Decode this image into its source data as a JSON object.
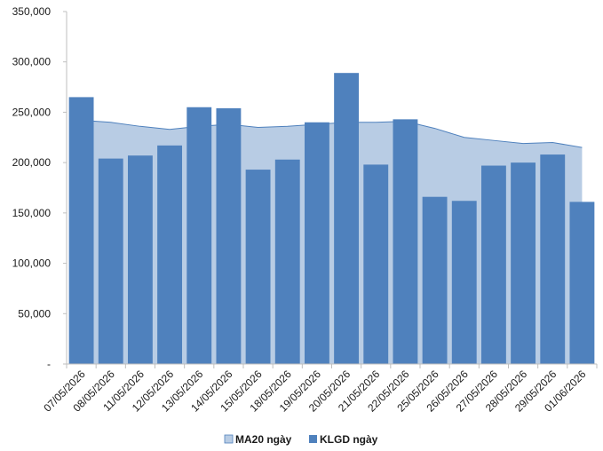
{
  "chart_data": {
    "type": "bar",
    "categories": [
      "07/05/2026",
      "08/05/2026",
      "11/05/2026",
      "12/05/2026",
      "13/05/2026",
      "14/05/2026",
      "15/05/2026",
      "18/05/2026",
      "19/05/2026",
      "20/05/2026",
      "21/05/2026",
      "22/05/2026",
      "25/05/2026",
      "26/05/2026",
      "27/05/2026",
      "28/05/2026",
      "29/05/2026",
      "01/06/2026"
    ],
    "series": [
      {
        "name": "MA20 ngày",
        "kind": "area",
        "color": "#b8cce4",
        "line_color": "#4f81bd",
        "values": [
          242000,
          240000,
          236000,
          233000,
          236000,
          238000,
          235000,
          236000,
          238000,
          240000,
          240000,
          241000,
          234000,
          225000,
          222000,
          219000,
          220000,
          215000
        ]
      },
      {
        "name": "KLGD ngày",
        "kind": "bar",
        "color": "#4f81bd",
        "values": [
          265000,
          204000,
          207000,
          217000,
          255000,
          254000,
          193000,
          203000,
          240000,
          289000,
          198000,
          243000,
          166000,
          162000,
          197000,
          200000,
          208000,
          161000
        ]
      }
    ],
    "y_ticks": [
      "-",
      "50,000",
      "100,000",
      "150,000",
      "200,000",
      "250,000",
      "300,000",
      "350,000"
    ],
    "ylim": [
      0,
      350000
    ],
    "grid": false,
    "legend_position": "bottom"
  }
}
